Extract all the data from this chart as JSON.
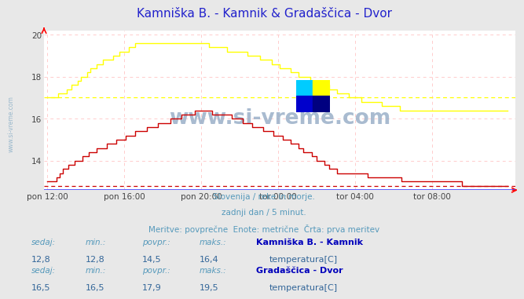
{
  "title": "Kamniška B. - Kamnik & Gradaščica - Dvor",
  "title_color": "#2222cc",
  "background_color": "#e8e8e8",
  "plot_bg_color": "#ffffff",
  "grid_color": "#ffcccc",
  "xlabel_ticks": [
    "pon 12:00",
    "pon 16:00",
    "pon 20:00",
    "tor 00:00",
    "tor 04:00",
    "tor 08:00"
  ],
  "xlabel_ticks_pos": [
    0,
    48,
    96,
    144,
    192,
    240
  ],
  "ylim": [
    12.6,
    20.2
  ],
  "xlim": [
    -2,
    292
  ],
  "yticks": [
    14,
    16,
    18,
    20
  ],
  "subtitle1": "Slovenija / reke in morje.",
  "subtitle2": "zadnji dan / 5 minut.",
  "subtitle3": "Meritve: povprečne  Enote: metrične  Črta: prva meritev",
  "subtitle_color": "#5599bb",
  "watermark": "www.si-vreme.com",
  "watermark_color": "#aabbcc",
  "line1_color": "#cc0000",
  "line1_hline": 12.8,
  "line2_color": "#ffff00",
  "line2_hline": 17.0,
  "legend1_station": "Kamniška B. - Kamnik",
  "legend1_measure": "temperatura[C]",
  "legend1_sedaj": "12,8",
  "legend1_min": "12,8",
  "legend1_povpr": "14,5",
  "legend1_maks": "16,4",
  "legend2_station": "Gradaščica - Dvor",
  "legend2_measure": "temperatura[C]",
  "legend2_sedaj": "16,5",
  "legend2_min": "16,5",
  "legend2_povpr": "17,9",
  "legend2_maks": "19,5",
  "legend_color": "#0000bb",
  "stat_label_color": "#5599bb",
  "stat_value_color": "#336699"
}
